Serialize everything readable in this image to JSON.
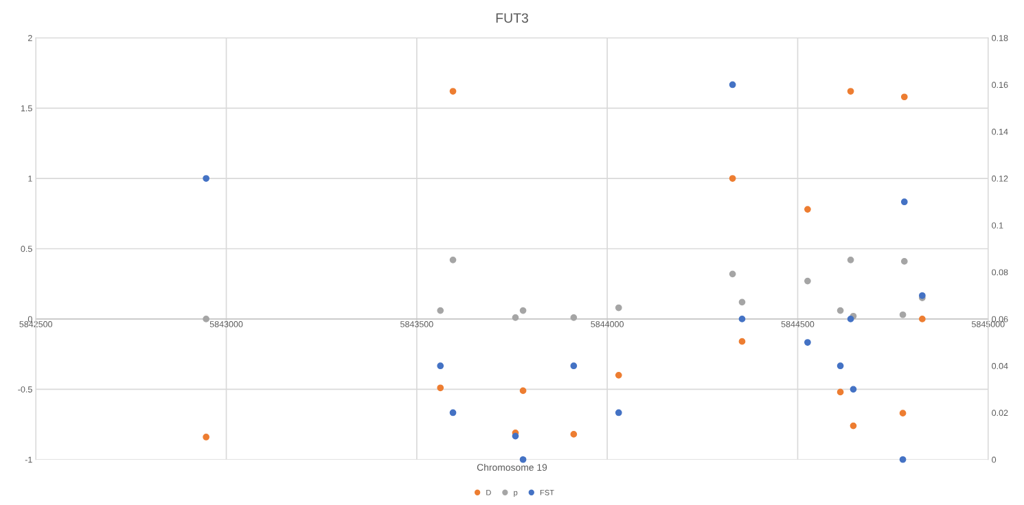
{
  "chart_data": {
    "type": "scatter",
    "title": "FUT3",
    "xlabel": "Chromosome 19",
    "x": [
      5842947,
      5843595,
      5843562,
      5843759,
      5843779,
      5843912,
      5844030,
      5844329,
      5844354,
      5844526,
      5844612,
      5844639,
      5844646,
      5844776,
      5844780,
      5844827
    ],
    "series": [
      {
        "name": "D",
        "color": "#ed7d31",
        "values": [
          -0.84,
          1.62,
          -0.49,
          -0.81,
          -0.51,
          -0.82,
          -0.4,
          1.0,
          -0.16,
          0.78,
          -0.52,
          1.62,
          -0.76,
          -0.67,
          1.58,
          0.0
        ]
      },
      {
        "name": "p",
        "color": "#a5a5a5",
        "values": [
          0.0,
          0.42,
          0.06,
          0.01,
          0.06,
          0.01,
          0.08,
          0.32,
          0.12,
          0.27,
          0.06,
          0.42,
          0.02,
          0.03,
          0.41,
          0.15
        ]
      },
      {
        "name": "FST",
        "color": "#4472c4",
        "axis": "y2",
        "values": [
          0.12,
          0.02,
          0.04,
          0.01,
          0.0,
          0.04,
          0.02,
          0.16,
          0.06,
          0.05,
          0.04,
          0.06,
          0.03,
          0.0,
          0.11,
          0.07
        ]
      }
    ],
    "xlim": [
      5842500,
      5845000
    ],
    "xticks": [
      5842500,
      5843000,
      5843500,
      5844000,
      5844500,
      5845000
    ],
    "ylim": [
      -1,
      2
    ],
    "yticks": [
      -1,
      -0.5,
      0,
      0.5,
      1,
      1.5,
      2
    ],
    "y2lim": [
      0,
      0.18
    ],
    "y2ticks": [
      0,
      0.02,
      0.04,
      0.06,
      0.08,
      0.1,
      0.12,
      0.14,
      0.16,
      0.18
    ],
    "grid": true,
    "legend": "bottom",
    "marker": "circle"
  }
}
